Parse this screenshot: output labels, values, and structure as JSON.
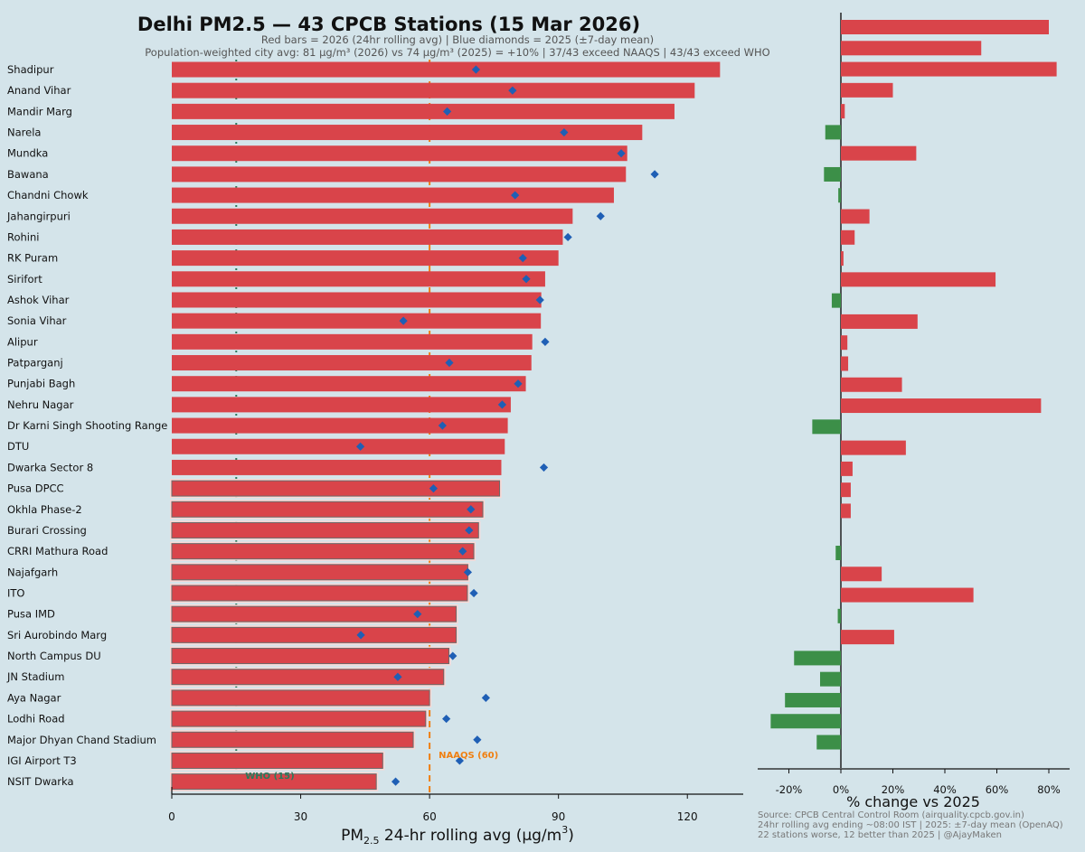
{
  "chart_data": [
    {
      "type": "bar",
      "orientation": "horizontal",
      "title": "Delhi PM2.5 — 43 CPCB Stations (15 Mar 2026)",
      "subtitle": "Red bars = 2026 (24hr rolling avg) | Blue diamonds = 2025 (±7-day mean)",
      "summary": "Population-weighted city avg: 81 μg/m³ (2026) vs 74 μg/m³ (2025) = +10% | 37/43 exceed NAAQS | 43/43 exceed WHO",
      "xlabel": "PM2.5 24-hr rolling avg (μg/m³)",
      "xlabel_parts": {
        "pre": "PM",
        "sub": "2.5",
        "post": " 24-hr rolling avg (μg/m",
        "sup": "3",
        "end": ")"
      },
      "xlim": [
        0,
        133
      ],
      "xticks": [
        0,
        30,
        60,
        90,
        120
      ],
      "reference_lines": [
        {
          "name": "naaqs",
          "value": 60,
          "label": "NAAQS (60)",
          "color": "#f07f10"
        },
        {
          "name": "who",
          "value": 15,
          "label": "WHO (15)",
          "color": "#2a7a5c"
        }
      ],
      "categories": [
        "Shadipur",
        "Anand Vihar",
        "Mandir Marg",
        "Narela",
        "Mundka",
        "Bawana",
        "Chandni Chowk",
        "Jahangirpuri",
        "Rohini",
        "RK Puram",
        "Sirifort",
        "Ashok Vihar",
        "Sonia Vihar",
        "Alipur",
        "Patparganj",
        "Punjabi Bagh",
        "Nehru Nagar",
        "Dr Karni Singh Shooting Range",
        "DTU",
        "Dwarka Sector 8",
        "Pusa DPCC",
        "Okhla Phase-2",
        "Burari Crossing",
        "CRRI Mathura Road",
        "Najafgarh",
        "ITO",
        "Pusa IMD",
        "Sri Aurobindo Marg",
        "North Campus DU",
        "JN Stadium",
        "Aya Nagar",
        "Lodhi Road",
        "Major Dhyan Chand Stadium",
        "IGI Airport T3",
        "NSIT Dwarka"
      ],
      "series": [
        {
          "name": "2026 (24hr rolling avg)",
          "color": "#d9444a",
          "values": [
            127.6,
            121.7,
            117.0,
            109.5,
            106.0,
            105.7,
            102.9,
            93.3,
            91.0,
            90.0,
            86.9,
            86.0,
            85.9,
            83.9,
            83.7,
            82.4,
            78.9,
            78.2,
            77.5,
            76.7,
            76.3,
            72.4,
            71.4,
            70.3,
            68.9,
            68.8,
            66.2,
            66.2,
            64.5,
            63.3,
            60.0,
            59.1,
            56.2,
            49.1,
            47.6
          ]
        },
        {
          "name": "2025 (±7-day mean)",
          "color": "#1f5fb5",
          "values": [
            70.8,
            79.3,
            64.1,
            91.3,
            104.6,
            112.4,
            79.9,
            99.8,
            92.2,
            81.7,
            82.5,
            85.7,
            53.9,
            86.9,
            64.6,
            80.6,
            76.9,
            63.0,
            43.9,
            86.6,
            60.9,
            69.6,
            69.2,
            67.7,
            68.9,
            70.3,
            57.2,
            44.0,
            65.4,
            52.6,
            73.1,
            63.9,
            71.1,
            67.0,
            52.1
          ]
        }
      ]
    },
    {
      "type": "bar",
      "orientation": "horizontal",
      "xlabel": "% change vs 2025",
      "xlim": [
        -32,
        88
      ],
      "xticks": [
        -20,
        0,
        20,
        40,
        60,
        80
      ],
      "xtick_labels": [
        "-20%",
        "0%",
        "20%",
        "40%",
        "60%",
        "80%"
      ],
      "colors": {
        "increase": "#d9444a",
        "decrease": "#3c8f48"
      },
      "values": [
        80,
        54,
        83,
        20,
        1.5,
        -6,
        29,
        -6.5,
        -1,
        11,
        5.3,
        1,
        59.5,
        -3.5,
        29.5,
        2.5,
        2.8,
        23.5,
        77,
        -11,
        25,
        4.5,
        3.8,
        3.8,
        0,
        -2,
        15.7,
        51,
        -1.2,
        20.5,
        -18,
        -8,
        -21.5,
        -27,
        -9.3
      ],
      "footnotes": [
        "Source: CPCB Central Control Room (airquality.cpcb.gov.in)",
        "24hr rolling avg ending ~08:00 IST | 2025: ±7-day mean (OpenAQ)",
        "22 stations worse, 12 better than 2025 | @AjayMaken"
      ]
    }
  ]
}
